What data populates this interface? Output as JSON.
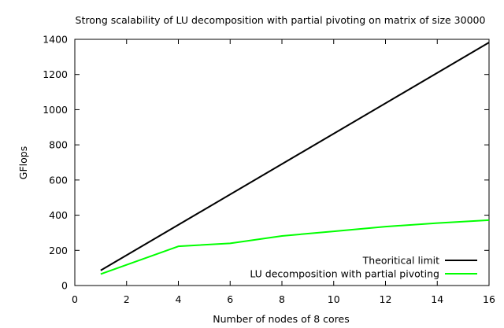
{
  "chart_data": {
    "type": "line",
    "title": "Strong scalability of LU decomposition with partial pivoting on matrix of size 30000",
    "xlabel": "Number of nodes of 8 cores",
    "ylabel": "GFlops",
    "xlim": [
      0,
      16
    ],
    "ylim": [
      0,
      1400
    ],
    "xticks": [
      0,
      2,
      4,
      6,
      8,
      10,
      12,
      14,
      16
    ],
    "yticks": [
      0,
      200,
      400,
      600,
      800,
      1000,
      1200,
      1400
    ],
    "grid": false,
    "legend_position": "bottom-right",
    "series": [
      {
        "name": "Theoritical limit",
        "color": "#000000",
        "x": [
          1,
          16
        ],
        "y": [
          86,
          1382
        ]
      },
      {
        "name": "LU decomposition with partial pivoting",
        "color": "#00ff00",
        "x": [
          1,
          4,
          6,
          8,
          10,
          12,
          14,
          16
        ],
        "y": [
          65,
          223,
          240,
          282,
          308,
          335,
          355,
          372
        ]
      }
    ]
  }
}
